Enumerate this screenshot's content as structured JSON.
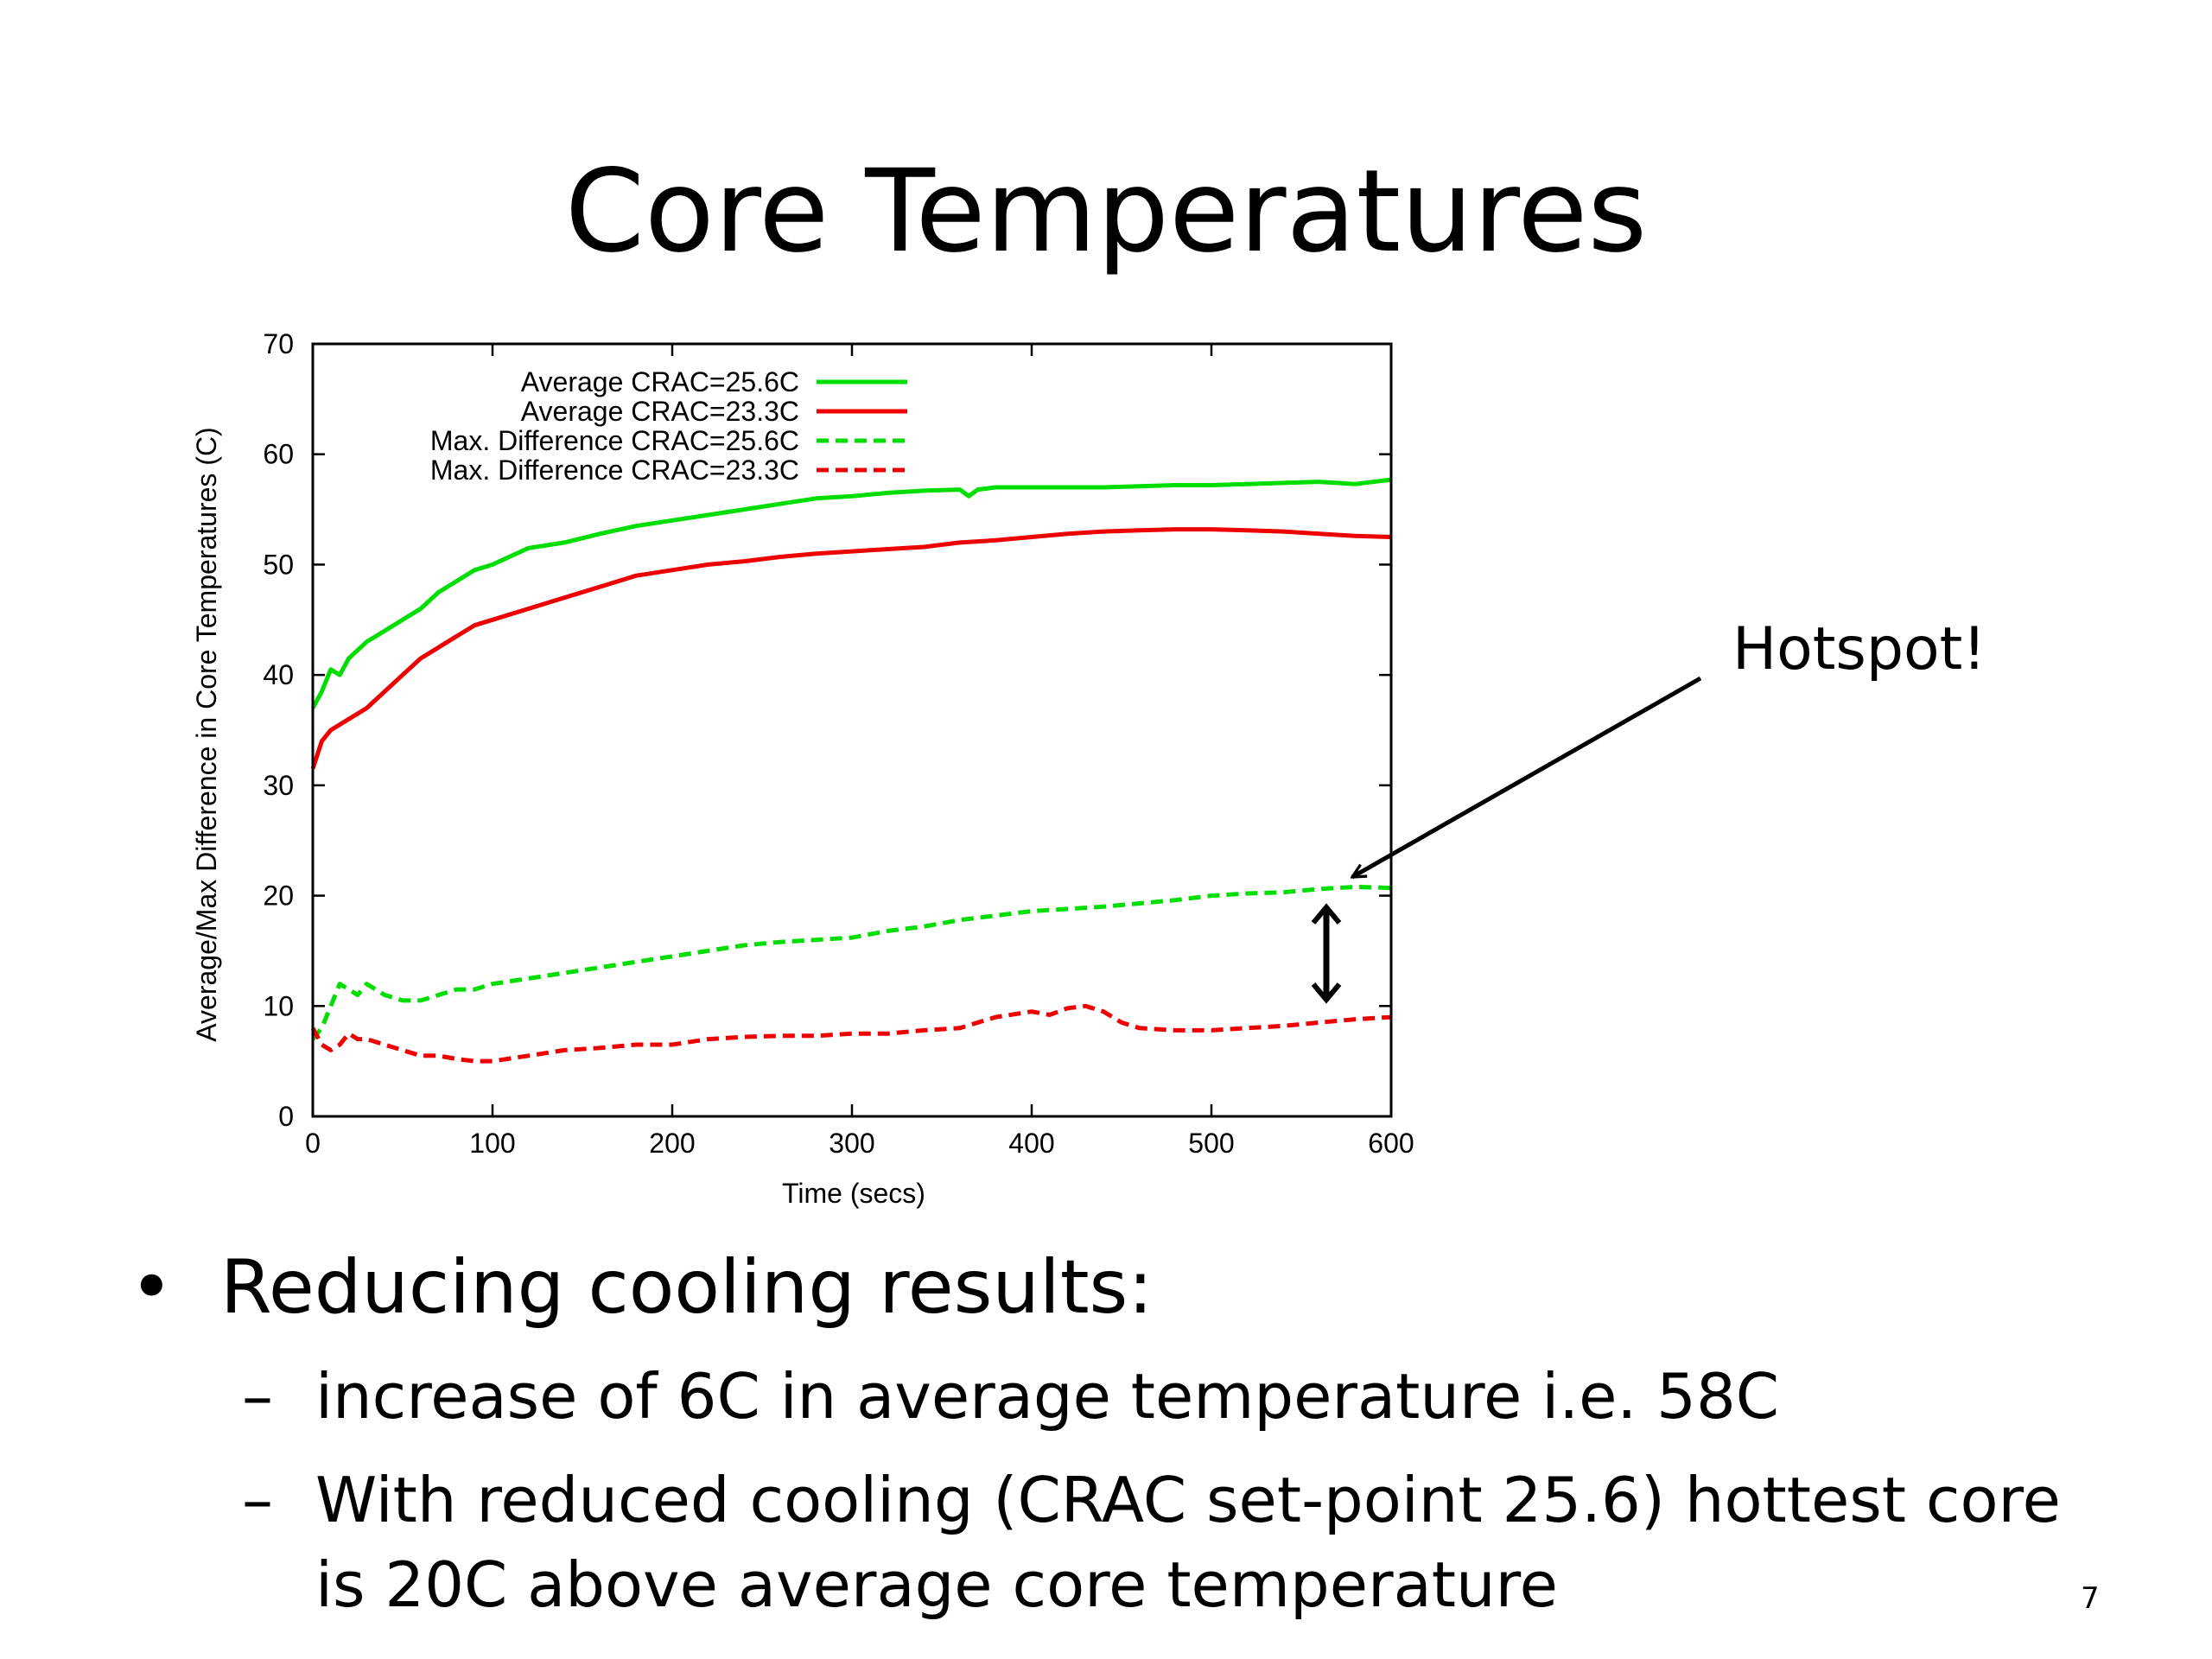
{
  "slide": {
    "title": "Core Temperatures",
    "annotation": "Hotspot!",
    "bullets": [
      {
        "text": "Reducing cooling results:",
        "sub": [
          {
            "text": "increase of 6C in average temperature i.e. 58C"
          },
          {
            "text": "With reduced cooling (CRAC set-point 25.6) hottest core is 20C above average core temperature"
          }
        ]
      }
    ],
    "bullet_symbol": "•",
    "sub_bullet_symbol": "–",
    "page_number": "7"
  },
  "chart_data": {
    "type": "line",
    "title": "",
    "xlabel": "Time (secs)",
    "ylabel": "Average/Max Difference in Core Temperatures (C)",
    "xlim": [
      0,
      600
    ],
    "ylim": [
      0,
      70
    ],
    "xticks": [
      0,
      100,
      200,
      300,
      400,
      500,
      600
    ],
    "yticks": [
      0,
      10,
      20,
      30,
      40,
      50,
      60,
      70
    ],
    "grid": false,
    "legend_position": "top-left",
    "series": [
      {
        "name": "Average CRAC=25.6C",
        "color": "#00dd00",
        "dash": false,
        "x": [
          0,
          5,
          10,
          15,
          20,
          30,
          40,
          50,
          60,
          70,
          80,
          90,
          100,
          120,
          140,
          160,
          180,
          200,
          220,
          240,
          260,
          280,
          300,
          320,
          340,
          360,
          365,
          370,
          380,
          400,
          420,
          440,
          460,
          480,
          500,
          520,
          540,
          560,
          580,
          600
        ],
        "y": [
          37,
          38.5,
          40.5,
          40,
          41.5,
          43,
          44,
          45,
          46,
          47.5,
          48.5,
          49.5,
          50,
          51.5,
          52,
          52.8,
          53.5,
          54,
          54.5,
          55,
          55.5,
          56,
          56.2,
          56.5,
          56.7,
          56.8,
          56.2,
          56.8,
          57,
          57,
          57,
          57,
          57.1,
          57.2,
          57.2,
          57.3,
          57.4,
          57.5,
          57.3,
          57.7
        ]
      },
      {
        "name": "Average CRAC=23.3C",
        "color": "#ee0000",
        "dash": false,
        "x": [
          0,
          5,
          10,
          15,
          20,
          30,
          40,
          50,
          60,
          70,
          80,
          90,
          100,
          120,
          140,
          160,
          180,
          200,
          220,
          240,
          260,
          280,
          300,
          320,
          340,
          360,
          380,
          400,
          420,
          440,
          460,
          480,
          500,
          520,
          540,
          560,
          580,
          600
        ],
        "y": [
          31.5,
          34,
          35,
          35.5,
          36,
          37,
          38.5,
          40,
          41.5,
          42.5,
          43.5,
          44.5,
          45,
          46,
          47,
          48,
          49,
          49.5,
          50,
          50.3,
          50.7,
          51,
          51.2,
          51.4,
          51.6,
          52,
          52.2,
          52.5,
          52.8,
          53,
          53.1,
          53.2,
          53.2,
          53.1,
          53,
          52.8,
          52.6,
          52.5
        ]
      },
      {
        "name": "Max. Difference CRAC=25.6C",
        "color": "#00dd00",
        "dash": true,
        "x": [
          0,
          5,
          10,
          15,
          20,
          25,
          30,
          40,
          50,
          60,
          70,
          80,
          90,
          100,
          120,
          140,
          160,
          180,
          200,
          220,
          240,
          260,
          280,
          300,
          320,
          340,
          360,
          380,
          400,
          420,
          440,
          460,
          480,
          500,
          520,
          540,
          560,
          580,
          600
        ],
        "y": [
          7,
          8,
          10,
          12,
          11.5,
          11,
          12,
          11,
          10.5,
          10.5,
          11,
          11.5,
          11.5,
          12,
          12.5,
          13,
          13.5,
          14,
          14.5,
          15,
          15.5,
          15.8,
          16,
          16.2,
          16.8,
          17.2,
          17.8,
          18.2,
          18.6,
          18.8,
          19,
          19.3,
          19.6,
          20,
          20.2,
          20.3,
          20.6,
          20.8,
          20.7
        ]
      },
      {
        "name": "Max. Difference CRAC=23.3C",
        "color": "#ee0000",
        "dash": true,
        "x": [
          0,
          5,
          10,
          15,
          20,
          25,
          30,
          40,
          50,
          60,
          70,
          80,
          90,
          100,
          120,
          140,
          160,
          180,
          200,
          220,
          240,
          260,
          280,
          300,
          320,
          340,
          360,
          380,
          400,
          410,
          420,
          430,
          440,
          450,
          460,
          480,
          500,
          520,
          540,
          560,
          580,
          600
        ],
        "y": [
          8,
          6.5,
          6,
          6.5,
          7.5,
          7,
          7,
          6.5,
          6,
          5.5,
          5.5,
          5.2,
          5,
          5,
          5.5,
          6,
          6.2,
          6.5,
          6.5,
          7,
          7.2,
          7.3,
          7.3,
          7.5,
          7.5,
          7.8,
          8,
          9,
          9.5,
          9.2,
          9.8,
          10,
          9.5,
          8.5,
          8,
          7.8,
          7.8,
          8,
          8.2,
          8.5,
          8.8,
          9
        ]
      }
    ]
  }
}
